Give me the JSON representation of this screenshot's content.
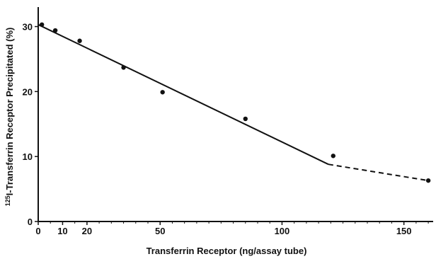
{
  "chart_data": {
    "type": "scatter",
    "title": "",
    "xlabel": "Transferrin Receptor (ng/assay tube)",
    "ylabel_sup": "125",
    "ylabel": "I-Transferrin Receptor Precipitated (%)",
    "xlim": [
      0,
      162
    ],
    "ylim": [
      0,
      33
    ],
    "x_ticks": [
      0,
      10,
      20,
      50,
      100,
      150
    ],
    "x_minor_ticks": [
      5,
      15,
      25,
      30,
      35,
      40,
      45,
      55,
      60,
      65,
      70,
      75,
      80,
      85,
      90,
      95,
      105,
      110,
      115,
      120,
      125,
      130,
      135,
      140,
      145,
      155,
      160
    ],
    "y_ticks": [
      0,
      10,
      20,
      30
    ],
    "grid": false,
    "series": [
      {
        "kind": "points",
        "x": [
          1.5,
          7,
          17,
          35,
          51,
          85,
          121,
          160
        ],
        "y": [
          30.3,
          29.4,
          27.8,
          23.7,
          19.9,
          15.8,
          10.1,
          6.3
        ]
      },
      {
        "kind": "fit-solid",
        "x": [
          0,
          119
        ],
        "y": [
          30.3,
          8.8
        ]
      },
      {
        "kind": "fit-dashed",
        "x": [
          119,
          160
        ],
        "y": [
          8.8,
          6.3
        ]
      }
    ]
  }
}
